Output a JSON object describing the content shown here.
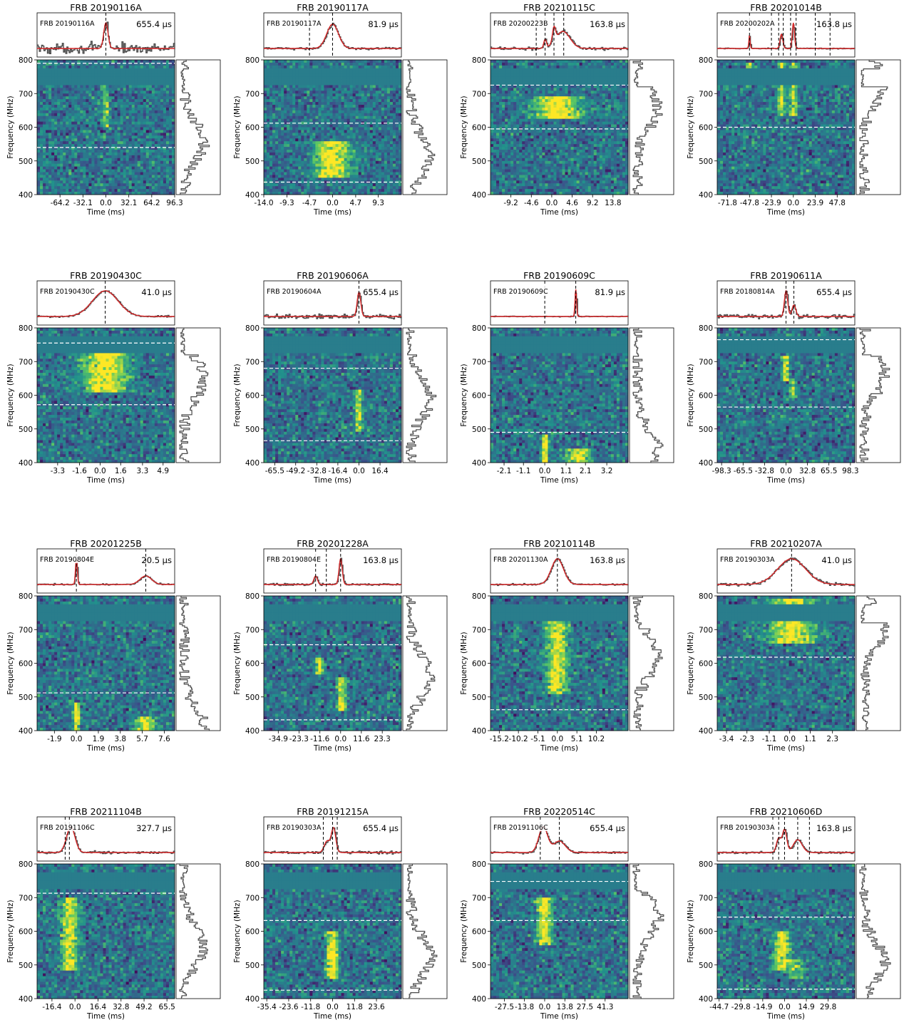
{
  "common": {
    "xlabel": "Time (ms)",
    "ylabel": "Frequency (MHz)",
    "freq_ticks": [
      400,
      500,
      600,
      700,
      800
    ],
    "freq_range": [
      400,
      800
    ],
    "colors": {
      "profile": "#4a4a4a",
      "fit": "#d62728",
      "marker": "#000000",
      "cutoff": "#ffffff"
    },
    "colormap": "viridis"
  },
  "chart_data": [
    {
      "type": "heatmap",
      "title": "FRB 20190116A",
      "template": "FRB 20190116A",
      "resolution": "655.4 μs",
      "xticks": [
        "-64.2",
        "-32.1",
        "0.0",
        "32.1",
        "64.2",
        "96.3"
      ],
      "xtick_values": [
        -64.2,
        -32.1,
        0,
        32.1,
        64.2,
        96.3
      ],
      "xlim": [
        -96.3,
        96.3
      ],
      "burst_markers": [
        0
      ],
      "freq_cutoffs": [
        790,
        540
      ],
      "burst_components": [
        {
          "t": 0,
          "width": 3,
          "fmin": 600,
          "fmax": 760,
          "strength": 0.55
        }
      ],
      "fit_components": [
        {
          "t": 0,
          "width": 3,
          "amp": 0.9
        }
      ],
      "profile_noise": 0.35,
      "spectrum_peak_freq": 560
    },
    {
      "type": "heatmap",
      "title": "FRB 20190117A",
      "template": "FRB 20190117A",
      "resolution": "81.9 μs",
      "xticks": [
        "-14.0",
        "-9.3",
        "-4.7",
        "0.0",
        "4.7",
        "9.3"
      ],
      "xtick_values": [
        -14,
        -9.3,
        -4.7,
        0,
        4.7,
        9.3
      ],
      "xlim": [
        -14,
        14
      ],
      "burst_markers": [
        -4.7,
        0
      ],
      "freq_cutoffs": [
        612,
        437
      ],
      "burst_components": [
        {
          "t": 0,
          "width": 2,
          "fmin": 450,
          "fmax": 560,
          "strength": 1
        }
      ],
      "fit_components": [
        {
          "t": 0,
          "width": 1.2,
          "amp": 0.85
        }
      ],
      "profile_noise": 0.08,
      "spectrum_peak_freq": 515
    },
    {
      "type": "heatmap",
      "title": "FRB 20210115C",
      "template": "FRB 20200223B",
      "resolution": "163.8 μs",
      "xticks": [
        "-9.2",
        "-4.6",
        "0.0",
        "4.6",
        "9.2",
        "13.8"
      ],
      "xtick_values": [
        -9.2,
        -4.6,
        0,
        4.6,
        9.2,
        13.8
      ],
      "xlim": [
        -13.8,
        17.2
      ],
      "burst_markers": [
        -3.5,
        -1.5,
        0.5,
        2.7
      ],
      "freq_cutoffs": [
        725,
        595
      ],
      "burst_components": [
        {
          "t": 1.2,
          "width": 3,
          "fmin": 625,
          "fmax": 690,
          "strength": 1
        }
      ],
      "fit_components": [
        {
          "t": -1.5,
          "width": 0.3,
          "amp": 0.3
        },
        {
          "t": 0.5,
          "width": 0.35,
          "amp": 0.5
        },
        {
          "t": 2.5,
          "width": 1.6,
          "amp": 0.6
        }
      ],
      "profile_noise": 0.1,
      "spectrum_peak_freq": 655
    },
    {
      "type": "heatmap",
      "title": "FRB 20201014B",
      "template": "FRB 20200202A",
      "resolution": "163.8 μs",
      "xticks": [
        "-71.8",
        "-47.8",
        "-23.9",
        "0.0",
        "23.9",
        "47.8"
      ],
      "xtick_values": [
        -71.8,
        -47.8,
        -23.9,
        0,
        23.9,
        47.8
      ],
      "xlim": [
        -83,
        67
      ],
      "burst_markers": [
        -47.8,
        -23.9,
        -16,
        -11,
        -3,
        3,
        23.9,
        40
      ],
      "freq_cutoffs": [
        600
      ],
      "burst_components": [
        {
          "t": -47.8,
          "width": 0.8,
          "fmin": 740,
          "fmax": 790,
          "strength": 0.8
        },
        {
          "t": -13,
          "width": 2.2,
          "fmin": 630,
          "fmax": 790,
          "strength": 0.9
        },
        {
          "t": 0,
          "width": 1.6,
          "fmin": 630,
          "fmax": 790,
          "strength": 0.9
        }
      ],
      "fit_components": [
        {
          "t": -47.8,
          "width": 0.7,
          "amp": 0.45
        },
        {
          "t": -13,
          "width": 1.5,
          "amp": 0.5
        },
        {
          "t": 0,
          "width": 1.2,
          "amp": 0.9
        }
      ],
      "profile_noise": 0.04,
      "spectrum_peak_freq": 730
    },
    {
      "type": "heatmap",
      "title": "FRB 20190430C",
      "template": "FRB 20190430C",
      "resolution": "41.0 μs",
      "xticks": [
        "-3.3",
        "-1.6",
        "0.0",
        "1.6",
        "3.3",
        "4.9"
      ],
      "xtick_values": [
        -3.3,
        -1.6,
        0,
        1.6,
        3.3,
        4.9
      ],
      "xlim": [
        -4.9,
        5.8
      ],
      "burst_markers": [
        0.4
      ],
      "freq_cutoffs": [
        755,
        572
      ],
      "burst_components": [
        {
          "t": 0.4,
          "width": 1,
          "fmin": 610,
          "fmax": 730,
          "strength": 1
        }
      ],
      "fit_components": [
        {
          "t": 0.4,
          "width": 1,
          "amp": 0.9
        }
      ],
      "profile_noise": 0.06,
      "spectrum_peak_freq": 650
    },
    {
      "type": "heatmap",
      "title": "FRB 20190606A",
      "template": "FRB 20190604A",
      "resolution": "655.4 μs",
      "xticks": [
        "-65.5",
        "-49.2",
        "-32.8",
        "-16.4",
        "0.0",
        "16.4"
      ],
      "xtick_values": [
        -65.5,
        -49.2,
        -32.8,
        -16.4,
        0,
        16.4
      ],
      "xlim": [
        -74,
        33
      ],
      "burst_markers": [
        0
      ],
      "freq_cutoffs": [
        680,
        465
      ],
      "burst_components": [
        {
          "t": 0,
          "width": 1.6,
          "fmin": 490,
          "fmax": 620,
          "strength": 0.8
        }
      ],
      "fit_components": [
        {
          "t": 0,
          "width": 1.4,
          "amp": 0.85
        }
      ],
      "profile_noise": 0.15,
      "spectrum_peak_freq": 590
    },
    {
      "type": "heatmap",
      "title": "FRB 20190609C",
      "template": "FRB 20190609C",
      "resolution": "81.9 μs",
      "xticks": [
        "-2.1",
        "-1.1",
        "0.0",
        "1.1",
        "2.1",
        "3.2"
      ],
      "xtick_values": [
        -2.1,
        -1.1,
        0,
        1.1,
        2.1,
        3.2
      ],
      "xlim": [
        -2.8,
        4.3
      ],
      "burst_markers": [
        0,
        1.6
      ],
      "freq_cutoffs": [
        490
      ],
      "burst_components": [
        {
          "t": 0,
          "width": 0.1,
          "fmin": 400,
          "fmax": 480,
          "strength": 1
        },
        {
          "t": 1.7,
          "width": 0.35,
          "fmin": 400,
          "fmax": 445,
          "strength": 0.9
        }
      ],
      "fit_components": [
        {
          "t": 1.6,
          "width": 0.04,
          "amp": 0.95
        }
      ],
      "profile_noise": 0.03,
      "spectrum_peak_freq": 440
    },
    {
      "type": "heatmap",
      "title": "FRB 20190611A",
      "template": "FRB 20180814A",
      "resolution": "655.4 μs",
      "xticks": [
        "-98.3",
        "-65.5",
        "-32.8",
        "0.0",
        "32.8",
        "65.5",
        "98.3"
      ],
      "xtick_values": [
        -98.3,
        -65.5,
        -32.8,
        0,
        32.8,
        65.5,
        98.3
      ],
      "xlim": [
        -105,
        105
      ],
      "burst_markers": [
        0,
        12
      ],
      "freq_cutoffs": [
        765,
        565
      ],
      "burst_components": [
        {
          "t": 0,
          "width": 3,
          "fmin": 640,
          "fmax": 720,
          "strength": 0.9
        },
        {
          "t": 10,
          "width": 3,
          "fmin": 590,
          "fmax": 650,
          "strength": 0.7
        }
      ],
      "fit_components": [
        {
          "t": 0,
          "width": 2.5,
          "amp": 0.9
        },
        {
          "t": 12,
          "width": 3,
          "amp": 0.4
        }
      ],
      "profile_noise": 0.15,
      "spectrum_peak_freq": 660
    },
    {
      "type": "heatmap",
      "title": "FRB 20201225B",
      "template": "FRB 20190804E",
      "resolution": "20.5 μs",
      "xticks": [
        "-1.9",
        "0.0",
        "1.9",
        "3.8",
        "5.7",
        "7.6"
      ],
      "xtick_values": [
        -1.9,
        0,
        1.9,
        3.8,
        5.7,
        7.6
      ],
      "xlim": [
        -3.4,
        8.5
      ],
      "burst_markers": [
        0,
        6
      ],
      "freq_cutoffs": [
        512
      ],
      "burst_components": [
        {
          "t": 0,
          "width": 0.12,
          "fmin": 400,
          "fmax": 480,
          "strength": 1
        },
        {
          "t": 6,
          "width": 0.5,
          "fmin": 400,
          "fmax": 440,
          "strength": 0.9
        }
      ],
      "fit_components": [
        {
          "t": 0,
          "width": 0.08,
          "amp": 0.9
        },
        {
          "t": 6,
          "width": 0.5,
          "amp": 0.3
        }
      ],
      "profile_noise": 0.05,
      "spectrum_peak_freq": 415
    },
    {
      "type": "heatmap",
      "title": "FRB 20201228A",
      "template": "FRB 20190804E",
      "resolution": "163.8 μs",
      "xticks": [
        "-34.9",
        "-23.3",
        "-11.6",
        "0.0",
        "11.6",
        "23.3"
      ],
      "xtick_values": [
        -34.9,
        -23.3,
        -11.6,
        0,
        11.6,
        23.3
      ],
      "xlim": [
        -43,
        34
      ],
      "burst_markers": [
        -14,
        -8,
        0
      ],
      "freq_cutoffs": [
        655,
        432
      ],
      "burst_components": [
        {
          "t": -12,
          "width": 1.2,
          "fmin": 570,
          "fmax": 620,
          "strength": 0.9
        },
        {
          "t": 0.5,
          "width": 1.4,
          "fmin": 460,
          "fmax": 560,
          "strength": 1
        }
      ],
      "fit_components": [
        {
          "t": -14,
          "width": 1,
          "amp": 0.3
        },
        {
          "t": 0,
          "width": 0.9,
          "amp": 0.9
        }
      ],
      "profile_noise": 0.08,
      "spectrum_peak_freq": 560
    },
    {
      "type": "heatmap",
      "title": "FRB 20210114B",
      "template": "FRB 20201130A",
      "resolution": "163.8 μs",
      "xticks": [
        "-15.2",
        "-10.2",
        "-5.1",
        "0.0",
        "5.1",
        "10.2"
      ],
      "xtick_values": [
        -15.2,
        -10.2,
        -5.1,
        0,
        5.1,
        10.2
      ],
      "xlim": [
        -17.5,
        18.5
      ],
      "burst_markers": [
        0
      ],
      "freq_cutoffs": [
        462
      ],
      "burst_components": [
        {
          "t": 0,
          "width": 1.6,
          "fmin": 510,
          "fmax": 740,
          "strength": 0.9
        }
      ],
      "fit_components": [
        {
          "t": 0,
          "width": 1.6,
          "amp": 0.9
        }
      ],
      "profile_noise": 0.06,
      "spectrum_peak_freq": 620
    },
    {
      "type": "heatmap",
      "title": "FRB 20210207A",
      "template": "FRB 20190303A",
      "resolution": "41.0 μs",
      "xticks": [
        "-3.4",
        "-2.3",
        "-1.1",
        "0.0",
        "1.1",
        "2.3"
      ],
      "xtick_values": [
        -3.4,
        -2.3,
        -1.1,
        0,
        1.1,
        2.3
      ],
      "xlim": [
        -3.9,
        3.5
      ],
      "burst_markers": [
        0.1
      ],
      "freq_cutoffs": [
        618
      ],
      "burst_components": [
        {
          "t": 0.1,
          "width": 0.7,
          "fmin": 660,
          "fmax": 790,
          "strength": 0.9
        }
      ],
      "fit_components": [
        {
          "t": 0.1,
          "width": 0.75,
          "amp": 0.9
        }
      ],
      "profile_noise": 0.1,
      "spectrum_peak_freq": 700
    },
    {
      "type": "heatmap",
      "title": "FRB 20211104B",
      "template": "FRB 20191106C",
      "resolution": "327.7 μs",
      "xticks": [
        "-16.4",
        "0.0",
        "16.4",
        "32.8",
        "49.2",
        "65.5"
      ],
      "xtick_values": [
        -16.4,
        0,
        16.4,
        32.8,
        49.2,
        65.5
      ],
      "xlim": [
        -27,
        71
      ],
      "burst_markers": [
        -7,
        -4
      ],
      "freq_cutoffs": [
        713
      ],
      "burst_components": [
        {
          "t": -4,
          "width": 3.5,
          "fmin": 480,
          "fmax": 700,
          "strength": 0.85
        }
      ],
      "fit_components": [
        {
          "t": -3,
          "width": 3,
          "amp": 0.9
        }
      ],
      "profile_noise": 0.08,
      "spectrum_peak_freq": 560
    },
    {
      "type": "heatmap",
      "title": "FRB 20191215A",
      "template": "FRB 20190303A",
      "resolution": "655.4 μs",
      "xticks": [
        "-35.4",
        "-23.6",
        "-11.8",
        "0.0",
        "11.8",
        "23.6"
      ],
      "xtick_values": [
        -35.4,
        -23.6,
        -11.8,
        0,
        11.8,
        23.6
      ],
      "xlim": [
        -37,
        37
      ],
      "burst_markers": [
        -5,
        0,
        2.5
      ],
      "freq_cutoffs": [
        632,
        425
      ],
      "burst_components": [
        {
          "t": 0,
          "width": 1.8,
          "fmin": 460,
          "fmax": 600,
          "strength": 1
        }
      ],
      "fit_components": [
        {
          "t": -3,
          "width": 1.5,
          "amp": 0.4
        },
        {
          "t": 0.5,
          "width": 1.2,
          "amp": 0.85
        }
      ],
      "profile_noise": 0.1,
      "spectrum_peak_freq": 525
    },
    {
      "type": "heatmap",
      "title": "FRB 20220514C",
      "template": "FRB 20191106C",
      "resolution": "655.4 μs",
      "xticks": [
        "-27.5",
        "-13.8",
        "0.0",
        "13.8",
        "27.5",
        "41.3"
      ],
      "xtick_values": [
        -27.5,
        -13.8,
        0,
        13.8,
        27.5,
        41.3
      ],
      "xlim": [
        -37,
        57
      ],
      "burst_markers": [
        -3,
        10
      ],
      "freq_cutoffs": [
        748,
        632
      ],
      "burst_components": [
        {
          "t": 0,
          "width": 3,
          "fmin": 560,
          "fmax": 700,
          "strength": 0.9
        }
      ],
      "fit_components": [
        {
          "t": -1,
          "width": 3,
          "amp": 0.9
        },
        {
          "t": 10,
          "width": 4,
          "amp": 0.4
        }
      ],
      "profile_noise": 0.08,
      "spectrum_peak_freq": 640
    },
    {
      "type": "heatmap",
      "title": "FRB 20210606D",
      "template": "FRB 20190303A",
      "resolution": "163.8 μs",
      "xticks": [
        "-44.7",
        "-29.8",
        "-14.9",
        "0.0",
        "14.9",
        "29.8"
      ],
      "xtick_values": [
        -44.7,
        -29.8,
        -14.9,
        0,
        14.9,
        29.8
      ],
      "xlim": [
        -46,
        48
      ],
      "burst_markers": [
        -8,
        -4,
        0,
        9,
        17
      ],
      "freq_cutoffs": [
        642,
        428
      ],
      "burst_components": [
        {
          "t": -2,
          "width": 3,
          "fmin": 480,
          "fmax": 600,
          "strength": 0.9
        },
        {
          "t": 8,
          "width": 3,
          "fmin": 460,
          "fmax": 520,
          "strength": 0.6
        }
      ],
      "fit_components": [
        {
          "t": -4,
          "width": 1.5,
          "amp": 0.5
        },
        {
          "t": 0,
          "width": 1.5,
          "amp": 0.8
        },
        {
          "t": 9,
          "width": 3,
          "amp": 0.45
        }
      ],
      "profile_noise": 0.08,
      "spectrum_peak_freq": 510
    }
  ]
}
